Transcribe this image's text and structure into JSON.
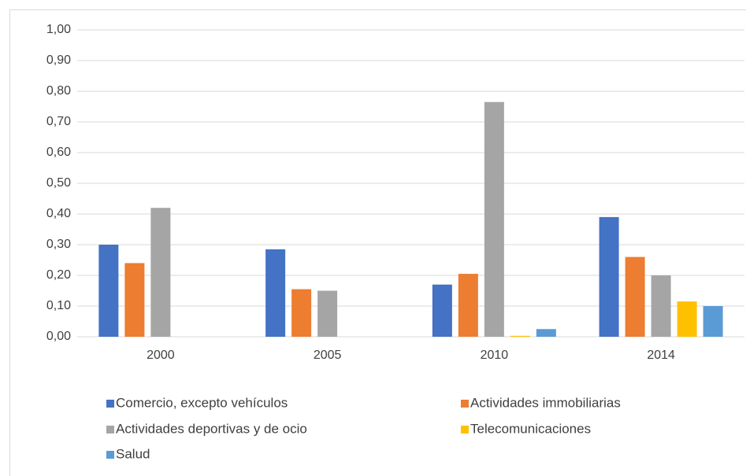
{
  "chart_data": {
    "type": "bar",
    "categories": [
      "2000",
      "2005",
      "2010",
      "2014"
    ],
    "series": [
      {
        "name": "Comercio, excepto vehículos",
        "color": "#4472c4",
        "values": [
          0.3,
          0.285,
          0.17,
          0.39
        ]
      },
      {
        "name": "Actividades immobiliarias",
        "color": "#ed7d31",
        "values": [
          0.24,
          0.155,
          0.205,
          0.26
        ]
      },
      {
        "name": "Actividades deportivas y de ocio",
        "color": "#a5a5a5",
        "values": [
          0.42,
          0.15,
          0.765,
          0.2
        ]
      },
      {
        "name": "Telecomunicaciones",
        "color": "#ffc000",
        "values": [
          null,
          null,
          0.003,
          0.115
        ]
      },
      {
        "name": "Salud",
        "color": "#5b9bd5",
        "values": [
          null,
          null,
          0.025,
          0.1
        ]
      }
    ],
    "ylim": [
      0,
      1
    ],
    "yticks": [
      {
        "value": 0,
        "label": "0,00"
      },
      {
        "value": 0.1,
        "label": "0,10"
      },
      {
        "value": 0.2,
        "label": "0,20"
      },
      {
        "value": 0.3,
        "label": "0,30"
      },
      {
        "value": 0.4,
        "label": "0,40"
      },
      {
        "value": 0.5,
        "label": "0,50"
      },
      {
        "value": 0.6,
        "label": "0,60"
      },
      {
        "value": 0.7,
        "label": "0,70"
      },
      {
        "value": 0.8,
        "label": "0,80"
      },
      {
        "value": 0.9,
        "label": "0,90"
      },
      {
        "value": 1,
        "label": "1,00"
      }
    ],
    "grid": true,
    "legend": "bottom"
  }
}
